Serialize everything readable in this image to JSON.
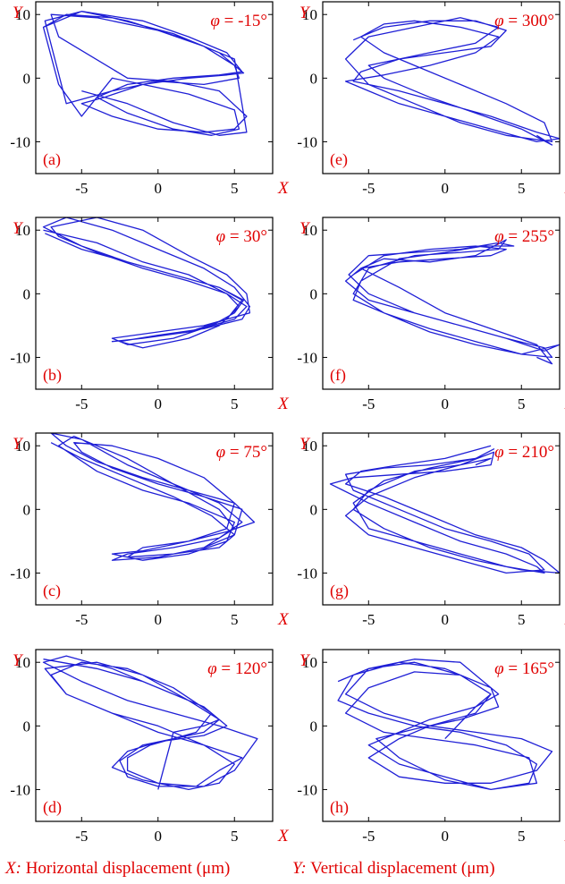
{
  "chart_data": [
    {
      "id": "a",
      "panel_label": "(a)",
      "phi_symbol": "φ",
      "phi_text": " = -15°",
      "type": "line",
      "xlabel": "X",
      "ylabel": "Y",
      "xlim": [
        -8,
        7.5
      ],
      "ylim": [
        -15,
        12
      ],
      "xticks": [
        "-5",
        "0",
        "5"
      ],
      "yticks": [
        "10",
        "0",
        "-10"
      ],
      "color": "#1f1fd6",
      "series": [
        {
          "name": "trajectory",
          "x": [
            -7.5,
            -5,
            -1,
            2,
            4.5,
            5.5,
            4,
            1,
            -2,
            -4,
            -2,
            1,
            3.5,
            5.3,
            5,
            2,
            -1,
            -3,
            -5,
            -6.5,
            -7.5,
            -6,
            -3,
            1,
            4,
            5.6,
            4.5,
            2,
            -1,
            -3.5,
            -5,
            -3,
            0,
            3,
            5,
            5.8,
            4,
            1,
            -2,
            -6.5,
            -7,
            -4,
            0,
            3,
            5,
            5.3,
            3,
            0,
            -3,
            -6,
            -7.4,
            -5,
            -2,
            2,
            5,
            5.8,
            4,
            1,
            -2,
            -5
          ],
          "y": [
            8,
            10.5,
            9,
            6.5,
            4,
            1,
            0.5,
            0,
            -1,
            -3,
            -5.5,
            -8,
            -9,
            -8,
            -5,
            -2.5,
            -1,
            0,
            -6,
            -1,
            8,
            10,
            9.5,
            7,
            4,
            0.8,
            0.5,
            0,
            -1,
            -3,
            -4,
            -6,
            -8,
            -8.5,
            -8,
            -6,
            -2,
            -0.5,
            0,
            6.5,
            10,
            9.5,
            7.5,
            5,
            2,
            0,
            -1,
            -0.5,
            -2,
            -4,
            9,
            10.5,
            9,
            6,
            3,
            -8.5,
            -9,
            -7,
            -4,
            -2
          ]
        }
      ]
    },
    {
      "id": "e",
      "panel_label": "(e)",
      "phi_symbol": "φ",
      "phi_text": " = 300°",
      "type": "line",
      "xlabel": "X",
      "ylabel": "Y",
      "xlim": [
        -8,
        7.5
      ],
      "ylim": [
        -15,
        12
      ],
      "xticks": [
        "-5",
        "0",
        "5"
      ],
      "yticks": [
        "10",
        "0",
        "-10"
      ],
      "color": "#1f1fd6",
      "series": [
        {
          "name": "trajectory",
          "x": [
            -6,
            -4,
            -1,
            2,
            4,
            3,
            0,
            -3,
            -5.5,
            -6,
            -3,
            0,
            3,
            6,
            7.5,
            6,
            3,
            0,
            -3,
            -5,
            -6.5,
            -4,
            -1,
            2,
            3.5,
            1,
            -2,
            -4,
            -5.5,
            -4,
            -2,
            1,
            4,
            6.5,
            7,
            4,
            1,
            -2,
            -5,
            -6.5,
            -5,
            -2,
            1,
            3.5,
            2,
            0,
            -3,
            -5,
            -4,
            -1,
            2,
            5,
            7,
            6
          ],
          "y": [
            6,
            8,
            9,
            9,
            7.5,
            5,
            4,
            3,
            1,
            -0.5,
            -2,
            -4,
            -6,
            -8.5,
            -9.5,
            -10,
            -8,
            -6,
            -4,
            -2,
            -0.5,
            0.5,
            2,
            4,
            6.5,
            8,
            9,
            8.5,
            6.5,
            4,
            2,
            -1,
            -4,
            -7,
            -10,
            -9,
            -7,
            -4,
            -1,
            3,
            6.5,
            8,
            9.5,
            8,
            5.5,
            4.5,
            3,
            2,
            0,
            -3,
            -5.5,
            -8,
            -10.5,
            -9
          ]
        }
      ]
    },
    {
      "id": "b",
      "panel_label": "(b)",
      "phi_symbol": "φ",
      "phi_text": " = 30°",
      "type": "line",
      "xlabel": "X",
      "ylabel": "Y",
      "xlim": [
        -8,
        7.5
      ],
      "ylim": [
        -15,
        12
      ],
      "xticks": [
        "-5",
        "0",
        "5"
      ],
      "yticks": [
        "10",
        "0",
        "-10"
      ],
      "color": "#1f1fd6",
      "series": [
        {
          "name": "trajectory",
          "x": [
            -7.5,
            -4,
            -1,
            2,
            4.5,
            5.8,
            5,
            2,
            -1,
            -3,
            -1,
            2,
            4.5,
            5.5,
            4,
            1,
            -2,
            -5,
            -7.5,
            -6,
            -3,
            0,
            3,
            5,
            6,
            5.5,
            3,
            0,
            -2.5,
            -1,
            2,
            4,
            5.3,
            4.5,
            2,
            -1,
            -4,
            -6.5,
            -7,
            -4,
            -1,
            2,
            4.5,
            5.8,
            6,
            3,
            0,
            -3,
            -2,
            1,
            3.5,
            5,
            5.6,
            4,
            1,
            -2,
            -5,
            -7.4
          ],
          "y": [
            10,
            8,
            5,
            3,
            0,
            -2,
            -4,
            -6,
            -7,
            -7.5,
            -7,
            -6,
            -4,
            -1,
            1,
            3,
            5,
            7.5,
            10.5,
            12,
            10,
            7,
            4,
            1,
            -2,
            -4,
            -5.5,
            -6.5,
            -7.5,
            -8.5,
            -7,
            -5,
            -2,
            0,
            2,
            4,
            6.5,
            9,
            10.5,
            12,
            10,
            6,
            3,
            0,
            -3,
            -5,
            -6,
            -7,
            -8,
            -7,
            -5,
            -3,
            -1,
            1,
            3,
            5,
            7,
            9.5
          ]
        }
      ]
    },
    {
      "id": "f",
      "panel_label": "(f)",
      "phi_symbol": "φ",
      "phi_text": " = 255°",
      "type": "line",
      "xlabel": "X",
      "ylabel": "Y",
      "xlim": [
        -8,
        7.5
      ],
      "ylim": [
        -15,
        12
      ],
      "xticks": [
        "-5",
        "0",
        "5"
      ],
      "yticks": [
        "10",
        "0",
        "-10"
      ],
      "color": "#1f1fd6",
      "series": [
        {
          "name": "trajectory",
          "x": [
            -6,
            -4,
            -1,
            2,
            4,
            3,
            0,
            -3,
            -5.5,
            -6.5,
            -5,
            -2,
            1,
            4,
            6.5,
            7,
            5,
            2,
            -1,
            -4,
            -6,
            -5.5,
            -3,
            0,
            2.5,
            4.5,
            3.5,
            1,
            -2,
            -5,
            -6.3,
            -5,
            -2,
            1,
            4,
            6.5,
            7.5,
            5,
            2,
            -1,
            -4,
            -6,
            -5,
            -2,
            1,
            3.5,
            4,
            2,
            -1,
            -4,
            -5.5,
            -3,
            0,
            3,
            6,
            7,
            6
          ],
          "y": [
            3,
            6,
            7,
            7.5,
            7,
            6,
            5.5,
            5,
            4,
            2,
            -1,
            -3,
            -5,
            -7,
            -8.5,
            -10,
            -9.5,
            -7.5,
            -5.5,
            -3,
            -1,
            2,
            5.5,
            6.5,
            7.5,
            7.5,
            8,
            7,
            6.5,
            6,
            3,
            0,
            -3,
            -5,
            -7,
            -9,
            -8,
            -9.5,
            -8,
            -6,
            -3,
            0,
            4,
            6,
            6.5,
            7,
            8.5,
            6,
            5,
            5.5,
            4,
            1,
            -3,
            -5.5,
            -8,
            -11,
            -10
          ]
        }
      ]
    },
    {
      "id": "c",
      "panel_label": "(c)",
      "phi_symbol": "φ",
      "phi_text": " = 75°",
      "type": "line",
      "xlabel": "X",
      "ylabel": "Y",
      "xlim": [
        -8,
        7.5
      ],
      "ylim": [
        -15,
        12
      ],
      "xticks": [
        "-5",
        "0",
        "5"
      ],
      "yticks": [
        "10",
        "0",
        "-10"
      ],
      "color": "#1f1fd6",
      "series": [
        {
          "name": "trajectory",
          "x": [
            -7,
            -5,
            -2,
            1,
            3.5,
            5,
            4,
            1,
            -2,
            -1,
            2,
            4.5,
            6.3,
            5,
            2,
            -1,
            -4,
            -6,
            -7,
            -5,
            -2,
            1,
            4,
            5.5,
            4,
            1,
            -2,
            -3,
            0,
            3,
            5,
            5.5,
            3,
            0,
            -3,
            -5,
            -5.5,
            -3,
            0,
            3,
            5,
            4.5,
            2,
            -1,
            -3,
            -1,
            2,
            4.5,
            5,
            2,
            -1,
            -4,
            -6.5,
            -5.5,
            -2,
            1,
            4,
            5,
            3
          ],
          "y": [
            10.5,
            8,
            5,
            2,
            -1,
            -4,
            -6,
            -7,
            -7.5,
            -6,
            -5,
            -3.5,
            -2,
            1,
            3,
            5,
            7.5,
            10,
            12,
            11,
            7,
            4,
            1,
            -2,
            -4.5,
            -6,
            -7,
            -8,
            -7.5,
            -6,
            -4,
            0,
            2,
            4,
            6.5,
            9,
            10.5,
            10,
            8,
            5,
            1,
            -3,
            -5,
            -6.5,
            -7,
            -8,
            -7,
            -5,
            -2,
            1,
            3,
            6,
            10,
            11.5,
            8,
            4,
            0,
            -3,
            -6
          ]
        }
      ]
    },
    {
      "id": "g",
      "panel_label": "(g)",
      "phi_symbol": "φ",
      "phi_text": " = 210°",
      "type": "line",
      "xlabel": "X",
      "ylabel": "Y",
      "xlim": [
        -8,
        7.5
      ],
      "ylim": [
        -15,
        12
      ],
      "xticks": [
        "-5",
        "0",
        "5"
      ],
      "yticks": [
        "10",
        "0",
        "-10"
      ],
      "color": "#1f1fd6",
      "series": [
        {
          "name": "trajectory",
          "x": [
            3,
            0,
            -3,
            -5.5,
            -6.5,
            -4,
            -1,
            2,
            5,
            6.5,
            7.5,
            5,
            2,
            -1,
            -4,
            -6,
            -5,
            -2,
            1,
            3.2,
            3,
            0,
            -3,
            -6,
            -7.5,
            -5,
            -2,
            1,
            4,
            6,
            6.5,
            4,
            1,
            -2,
            -5,
            -6,
            -4,
            -1,
            2,
            3.2,
            2,
            -1,
            -4,
            -6.5,
            -6,
            -3,
            0,
            3,
            5.5,
            6.5,
            4,
            1,
            -2,
            -5,
            -6.5,
            -5,
            -2,
            1,
            3,
            2
          ],
          "y": [
            10,
            8,
            7,
            6,
            4,
            2,
            -1,
            -4,
            -6,
            -8,
            -10,
            -9.5,
            -8,
            -6,
            -3,
            0,
            3,
            6,
            7,
            9,
            7,
            6,
            5.5,
            5,
            4,
            1,
            -2,
            -5,
            -7,
            -9,
            -10,
            -9,
            -7,
            -5,
            -3,
            1,
            4.5,
            6.5,
            8,
            9.5,
            8,
            7,
            6.5,
            5.5,
            3,
            0,
            -3,
            -5,
            -7,
            -9.5,
            -10,
            -8,
            -6,
            -4,
            -1,
            2,
            5,
            7,
            8,
            7
          ]
        }
      ]
    },
    {
      "id": "d",
      "panel_label": "(d)",
      "phi_symbol": "φ",
      "phi_text": " = 120°",
      "type": "line",
      "xlabel": "X",
      "ylabel": "Y",
      "xlim": [
        -8,
        7.5
      ],
      "ylim": [
        -15,
        12
      ],
      "xticks": [
        "-5",
        "0",
        "5"
      ],
      "yticks": [
        "10",
        "0",
        "-10"
      ],
      "color": "#1f1fd6",
      "series": [
        {
          "name": "trajectory",
          "x": [
            -7.5,
            -4,
            -1,
            2,
            4,
            3,
            1,
            -1,
            -2.5,
            -2,
            0,
            3,
            5,
            6.5,
            4,
            1,
            -2,
            -5,
            -7.5,
            -6,
            -3,
            0,
            3,
            4.5,
            3,
            0,
            -2,
            -3,
            -1,
            2,
            4,
            5,
            3,
            0,
            -3,
            -6,
            -7,
            -5,
            -2,
            1,
            3.5,
            2.5,
            -0.5,
            -2,
            -2,
            0,
            2.5,
            4,
            5.5,
            3,
            0,
            -3,
            -6,
            -7.4,
            -4,
            -1,
            2,
            4,
            3,
            1,
            0
          ],
          "y": [
            10.5,
            9,
            7,
            4,
            1,
            -1,
            -2,
            -3,
            -5.5,
            -8,
            -9.5,
            -9.5,
            -7,
            -2,
            0,
            2,
            4,
            7,
            10,
            11,
            9,
            6,
            3,
            0,
            -1.5,
            -2.5,
            -4,
            -6.5,
            -8.5,
            -10,
            -9,
            -6,
            -3,
            0,
            2,
            5,
            8,
            10,
            9,
            6,
            2,
            -1,
            -3,
            -5,
            -7,
            -9,
            -9.5,
            -7,
            -5,
            -3,
            -1,
            2,
            5,
            9,
            10,
            8,
            4,
            1,
            0,
            -1,
            -10
          ]
        }
      ]
    },
    {
      "id": "h",
      "panel_label": "(h)",
      "phi_symbol": "φ",
      "phi_text": " = 165°",
      "type": "line",
      "xlabel": "X",
      "ylabel": "Y",
      "xlim": [
        -8,
        7.5
      ],
      "ylim": [
        -15,
        12
      ],
      "xticks": [
        "-5",
        "0",
        "5"
      ],
      "yticks": [
        "10",
        "0",
        "-10"
      ],
      "color": "#1f1fd6",
      "series": [
        {
          "name": "trajectory",
          "x": [
            -7,
            -5,
            -2,
            1,
            3,
            2,
            -1,
            -3,
            -5,
            -3,
            0,
            3,
            6,
            7,
            5,
            2,
            -1,
            -4,
            -6.5,
            -5,
            -2,
            1,
            3.5,
            2,
            -1,
            -3,
            -5,
            -3,
            0,
            3,
            5.5,
            6,
            4,
            1,
            -2,
            -5,
            -7,
            -6,
            -3,
            0,
            3,
            3.5,
            1,
            -2,
            -4.5,
            -3,
            0,
            3,
            6,
            5.5,
            2,
            -1,
            -4,
            -6.5,
            -5,
            -2,
            1,
            3,
            2,
            0
          ],
          "y": [
            7,
            9,
            10,
            8,
            5,
            2,
            0,
            -2,
            -5,
            -8,
            -9,
            -9,
            -7,
            -4,
            -2,
            -1,
            0,
            2,
            5,
            9,
            10.5,
            10,
            5,
            3,
            1,
            -1,
            -3,
            -6,
            -8,
            -10,
            -9,
            -6,
            -3,
            -1,
            0,
            2,
            4,
            8,
            10,
            9,
            6,
            3,
            1,
            -0.5,
            -2,
            -5,
            -8.5,
            -10,
            -9,
            -5,
            -3,
            -2,
            -1,
            2,
            6,
            8.5,
            8,
            5,
            3,
            -2
          ]
        }
      ]
    }
  ],
  "footer": {
    "x_symbol": "X:",
    "x_text": " Horizontal displacement (μm)",
    "y_symbol": "Y:",
    "y_text": " Vertical displacement (μm)"
  }
}
